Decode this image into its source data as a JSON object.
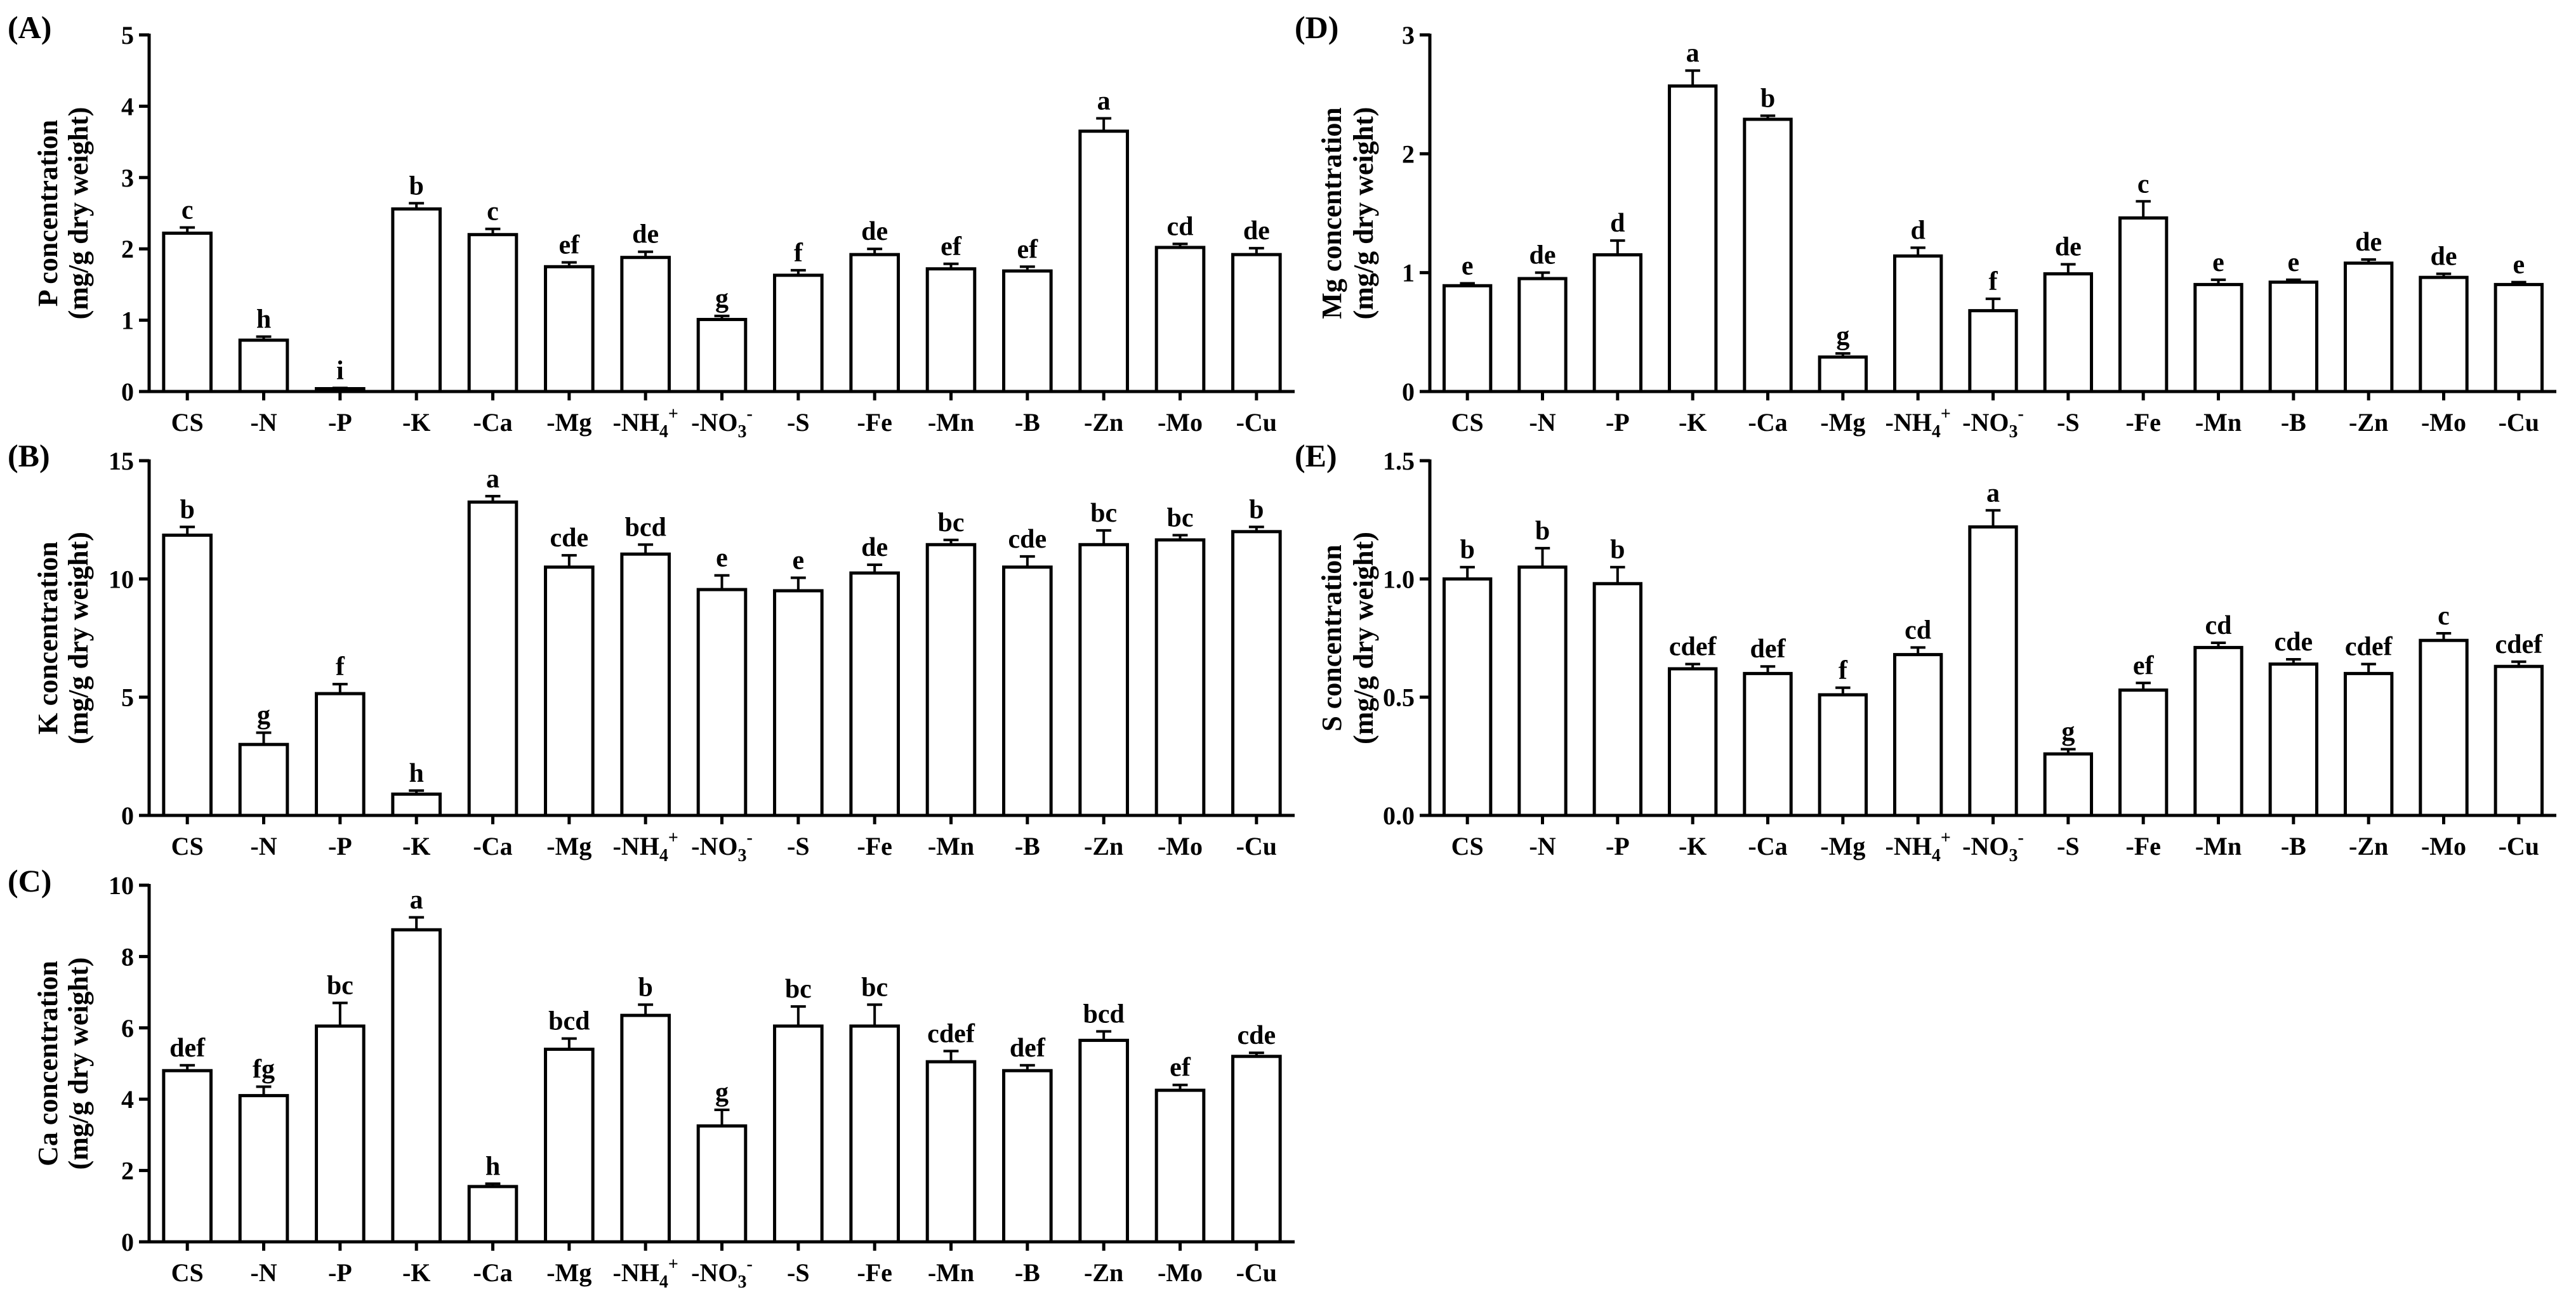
{
  "chart_data": [
    {
      "id": "A",
      "type": "bar",
      "panel_label": "(A)",
      "ylabel": [
        "P concentration",
        "(mg/g dry weight)"
      ],
      "ylim": [
        0,
        5
      ],
      "yticks": [
        0,
        1,
        2,
        3,
        4,
        5
      ],
      "ytick_labels": [
        "0",
        "1",
        "2",
        "3",
        "4",
        "5"
      ],
      "categories": [
        "CS",
        "-N",
        "-P",
        "-K",
        "-Ca",
        "-Mg",
        "-NH4+",
        "-NO3-",
        "-S",
        "-Fe",
        "-Mn",
        "-B",
        "-Zn",
        "-Mo",
        "-Cu"
      ],
      "values": [
        2.22,
        0.72,
        0.04,
        2.56,
        2.2,
        1.75,
        1.88,
        1.01,
        1.63,
        1.92,
        1.72,
        1.69,
        3.65,
        2.02,
        1.92
      ],
      "errors": [
        0.08,
        0.05,
        0.01,
        0.08,
        0.08,
        0.06,
        0.08,
        0.05,
        0.07,
        0.08,
        0.07,
        0.06,
        0.18,
        0.05,
        0.09
      ],
      "letters": [
        "c",
        "h",
        "i",
        "b",
        "c",
        "ef",
        "de",
        "g",
        "f",
        "de",
        "ef",
        "ef",
        "a",
        "cd",
        "de"
      ]
    },
    {
      "id": "B",
      "type": "bar",
      "panel_label": "(B)",
      "ylabel": [
        "K concentration",
        "(mg/g dry weight)"
      ],
      "ylim": [
        0,
        15
      ],
      "yticks": [
        0,
        5,
        10,
        15
      ],
      "ytick_labels": [
        "0",
        "5",
        "10",
        "15"
      ],
      "categories": [
        "CS",
        "-N",
        "-P",
        "-K",
        "-Ca",
        "-Mg",
        "-NH4+",
        "-NO3-",
        "-S",
        "-Fe",
        "-Mn",
        "-B",
        "-Zn",
        "-Mo",
        "-Cu"
      ],
      "values": [
        11.85,
        3.0,
        5.15,
        0.9,
        13.25,
        10.5,
        11.05,
        9.55,
        9.5,
        10.25,
        11.45,
        10.5,
        11.45,
        11.65,
        12.0
      ],
      "errors": [
        0.35,
        0.5,
        0.4,
        0.15,
        0.25,
        0.5,
        0.4,
        0.6,
        0.55,
        0.35,
        0.2,
        0.45,
        0.6,
        0.2,
        0.2
      ],
      "letters": [
        "b",
        "g",
        "f",
        "h",
        "a",
        "cde",
        "bcd",
        "e",
        "e",
        "de",
        "bc",
        "cde",
        "bc",
        "bc",
        "b"
      ]
    },
    {
      "id": "C",
      "type": "bar",
      "panel_label": "(C)",
      "ylabel": [
        "Ca concentration",
        "(mg/g dry weight)"
      ],
      "ylim": [
        0,
        10
      ],
      "yticks": [
        0,
        2,
        4,
        6,
        8,
        10
      ],
      "ytick_labels": [
        "0",
        "2",
        "4",
        "6",
        "8",
        "10"
      ],
      "categories": [
        "CS",
        "-N",
        "-P",
        "-K",
        "-Ca",
        "-Mg",
        "-NH4+",
        "-NO3-",
        "-S",
        "-Fe",
        "-Mn",
        "-B",
        "-Zn",
        "-Mo",
        "-Cu"
      ],
      "values": [
        4.8,
        4.1,
        6.05,
        8.75,
        1.55,
        5.4,
        6.35,
        3.25,
        6.05,
        6.05,
        5.05,
        4.8,
        5.65,
        4.25,
        5.2
      ],
      "errors": [
        0.15,
        0.25,
        0.65,
        0.35,
        0.08,
        0.3,
        0.3,
        0.45,
        0.55,
        0.6,
        0.3,
        0.15,
        0.25,
        0.15,
        0.1
      ],
      "letters": [
        "def",
        "fg",
        "bc",
        "a",
        "h",
        "bcd",
        "b",
        "g",
        "bc",
        "bc",
        "cdef",
        "def",
        "bcd",
        "ef",
        "cde"
      ]
    },
    {
      "id": "D",
      "type": "bar",
      "panel_label": "(D)",
      "ylabel": [
        "Mg concentration",
        "(mg/g dry weight)"
      ],
      "ylim": [
        0,
        3
      ],
      "yticks": [
        0,
        1,
        2,
        3
      ],
      "ytick_labels": [
        "0",
        "1",
        "2",
        "3"
      ],
      "categories": [
        "CS",
        "-N",
        "-P",
        "-K",
        "-Ca",
        "-Mg",
        "-NH4+",
        "-NO3-",
        "-S",
        "-Fe",
        "-Mn",
        "-B",
        "-Zn",
        "-Mo",
        "-Cu"
      ],
      "values": [
        0.89,
        0.95,
        1.15,
        2.57,
        2.29,
        0.29,
        1.14,
        0.68,
        0.99,
        1.46,
        0.9,
        0.92,
        1.08,
        0.96,
        0.9
      ],
      "errors": [
        0.02,
        0.05,
        0.12,
        0.13,
        0.03,
        0.03,
        0.07,
        0.1,
        0.08,
        0.14,
        0.04,
        0.02,
        0.03,
        0.03,
        0.02
      ],
      "letters": [
        "e",
        "de",
        "d",
        "a",
        "b",
        "g",
        "d",
        "f",
        "de",
        "c",
        "e",
        "e",
        "de",
        "de",
        "e"
      ]
    },
    {
      "id": "E",
      "type": "bar",
      "panel_label": "(E)",
      "ylabel": [
        "S concentration",
        "(mg/g dry weight)"
      ],
      "ylim": [
        0,
        1.5
      ],
      "yticks": [
        0,
        0.5,
        1.0,
        1.5
      ],
      "ytick_labels": [
        "0.0",
        "0.5",
        "1.0",
        "1.5"
      ],
      "categories": [
        "CS",
        "-N",
        "-P",
        "-K",
        "-Ca",
        "-Mg",
        "-NH4+",
        "-NO3-",
        "-S",
        "-Fe",
        "-Mn",
        "-B",
        "-Zn",
        "-Mo",
        "-Cu"
      ],
      "values": [
        1.0,
        1.05,
        0.98,
        0.62,
        0.6,
        0.51,
        0.68,
        1.22,
        0.26,
        0.53,
        0.71,
        0.64,
        0.6,
        0.74,
        0.63
      ],
      "errors": [
        0.05,
        0.08,
        0.07,
        0.02,
        0.03,
        0.03,
        0.03,
        0.07,
        0.02,
        0.03,
        0.02,
        0.02,
        0.04,
        0.03,
        0.02
      ],
      "letters": [
        "b",
        "b",
        "b",
        "cdef",
        "def",
        "f",
        "cd",
        "a",
        "g",
        "ef",
        "cd",
        "cde",
        "cdef",
        "c",
        "cdef"
      ]
    }
  ]
}
